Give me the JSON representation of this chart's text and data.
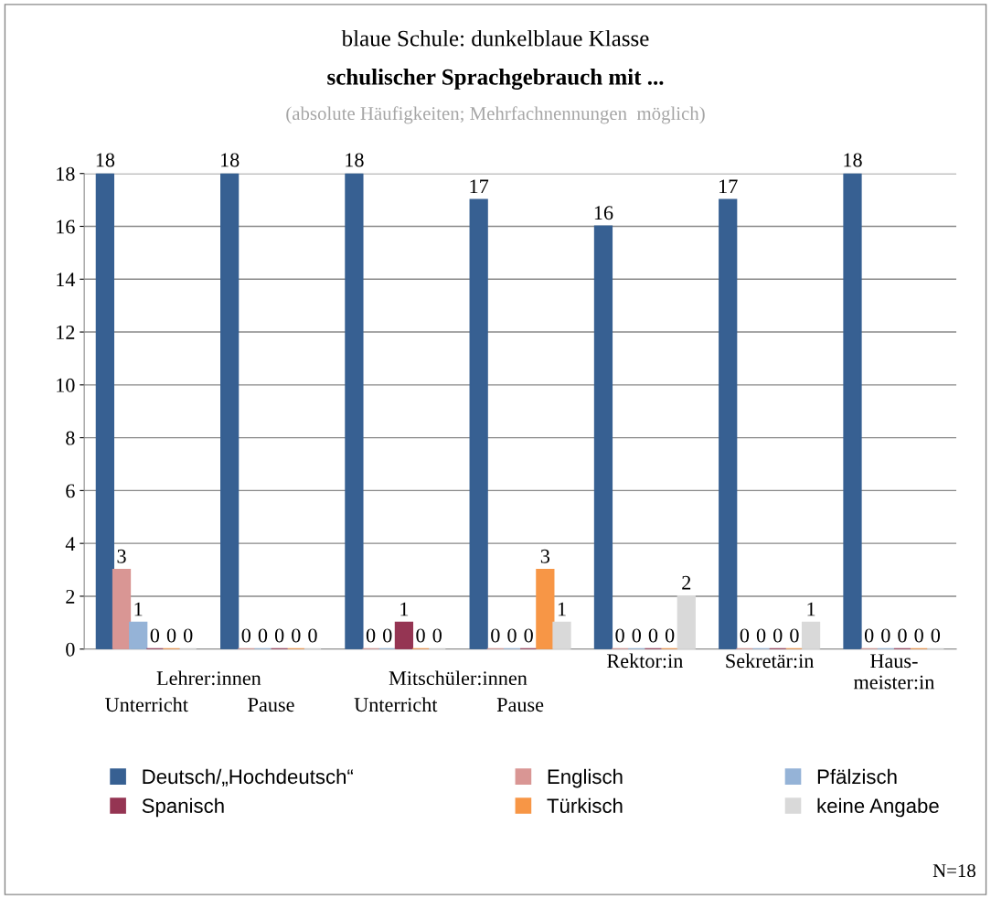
{
  "chart_data": {
    "type": "bar",
    "title": "blaue Schule: dunkelblaue Klasse",
    "subtitle": "schulischer Sprachgebrauch mit ...",
    "annotations": [
      "(absolute Häufigkeiten; Mehrfachnennungen  möglich)",
      "Lehrer:innen",
      "Mitschüler:innen",
      "N=18"
    ],
    "categories": [
      "Unterricht",
      "Pause",
      "Unterricht",
      "Pause",
      "Rektor:in",
      "Sekretär:in",
      "Haus-\nmeister:in"
    ],
    "series": [
      {
        "name": "Deutsch/„Hochdeutsch“",
        "color": "#376092",
        "values": [
          18,
          18,
          18,
          17,
          16,
          17,
          18
        ]
      },
      {
        "name": "Englisch",
        "color": "#d99694",
        "values": [
          3,
          0,
          0,
          0,
          0,
          0,
          0
        ]
      },
      {
        "name": "Pfälzisch",
        "color": "#95b3d7",
        "values": [
          1,
          0,
          0,
          0,
          0,
          0,
          0
        ]
      },
      {
        "name": "Spanisch",
        "color": "#953553",
        "values": [
          0,
          0,
          1,
          0,
          0,
          0,
          0
        ]
      },
      {
        "name": "Türkisch",
        "color": "#f79646",
        "values": [
          0,
          0,
          0,
          3,
          0,
          0,
          0
        ]
      },
      {
        "name": "keine Angabe",
        "color": "#d9d9d9",
        "values": [
          0,
          0,
          0,
          1,
          2,
          1,
          0
        ]
      }
    ],
    "ylim": [
      0,
      18
    ],
    "yticks": [
      0,
      2,
      4,
      6,
      8,
      10,
      12,
      14,
      16,
      18
    ],
    "grid": "y",
    "legend": "bottom",
    "data_labels": true
  }
}
